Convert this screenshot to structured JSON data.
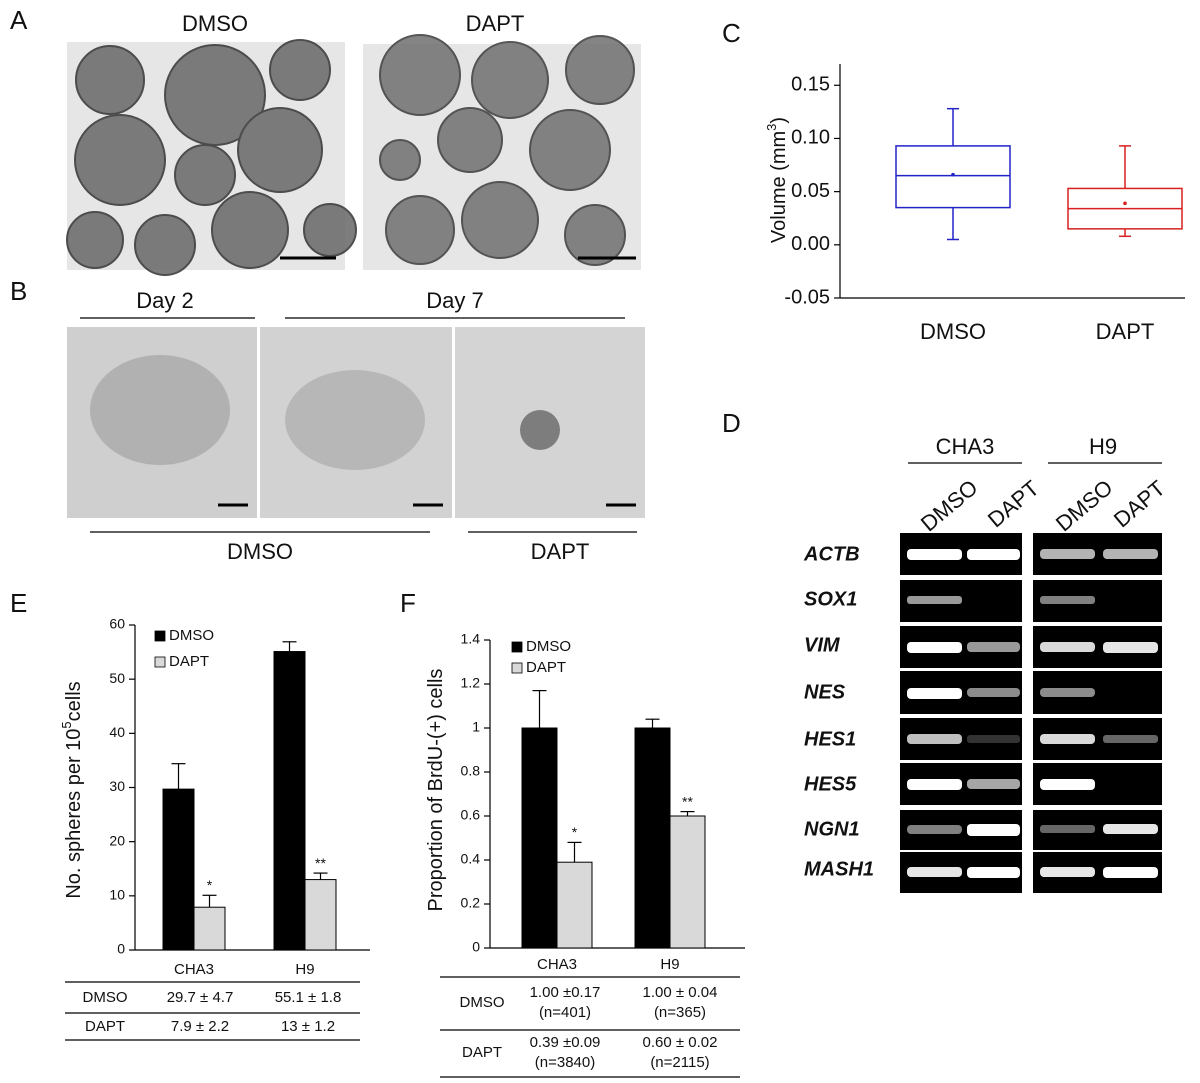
{
  "panel_labels": [
    "A",
    "B",
    "C",
    "D",
    "E",
    "F"
  ],
  "panel_a": {
    "titles": [
      "DMSO",
      "DAPT"
    ]
  },
  "panel_b": {
    "day_labels": [
      "Day 2",
      "Day 7"
    ],
    "group_labels": [
      "DMSO",
      "DAPT"
    ]
  },
  "panel_d": {
    "cell_lines": [
      "CHA3",
      "H9"
    ],
    "lanes": [
      "DMSO",
      "DAPT",
      "DMSO",
      "DAPT"
    ],
    "genes": [
      "ACTB",
      "SOX1",
      "VIM",
      "NES",
      "HES1",
      "HES5",
      "NGN1",
      "MASH1"
    ]
  },
  "chart_data": [
    {
      "type": "box",
      "categories": [
        "DMSO",
        "DAPT"
      ],
      "colors": [
        "#2323c8",
        "#d82020"
      ],
      "y_label": {
        "text": "Volume (mm",
        "sup": "3",
        "end": ")"
      },
      "stats": [
        {
          "whislo": 0.005,
          "q1": 0.035,
          "med": 0.065,
          "mean": 0.066,
          "q3": 0.093,
          "whishi": 0.128
        },
        {
          "whislo": 0.008,
          "q1": 0.015,
          "med": 0.034,
          "mean": 0.039,
          "q3": 0.053,
          "whishi": 0.093
        }
      ],
      "ylim": [
        -0.05,
        0.17
      ],
      "yticks": [
        {
          "value": -0.05,
          "label": "-0.05"
        },
        {
          "value": 0,
          "label": "0.00"
        },
        {
          "value": 0.05,
          "label": "0.05"
        },
        {
          "value": 0.1,
          "label": "0.10"
        },
        {
          "value": 0.15,
          "label": "0.15"
        }
      ]
    },
    {
      "type": "bar",
      "categories": [
        "CHA3",
        "H9"
      ],
      "y_label": {
        "text": "No. spheres per 10",
        "sup": "5",
        "end": "cells"
      },
      "series": [
        {
          "name": "DMSO",
          "color": "#000000",
          "values": [
            29.7,
            55.1
          ],
          "errors": [
            4.7,
            1.8
          ]
        },
        {
          "name": "DAPT",
          "color": "#d9d9d9",
          "values": [
            7.9,
            13
          ],
          "errors": [
            2.2,
            1.2
          ],
          "annotations": [
            "*",
            "**"
          ]
        }
      ],
      "ylim": [
        0,
        60
      ],
      "yticks": [
        0,
        10,
        20,
        30,
        40,
        50,
        60
      ],
      "table": [
        [
          "DMSO",
          "29.7 ± 4.7",
          "55.1 ± 1.8"
        ],
        [
          "DAPT",
          "7.9 ± 2.2",
          "13 ± 1.2"
        ]
      ]
    },
    {
      "type": "bar",
      "categories": [
        "CHA3",
        "H9"
      ],
      "y_label": {
        "text": "Proportion of  BrdU-(+) cells"
      },
      "series": [
        {
          "name": "DMSO",
          "color": "#000000",
          "values": [
            1.0,
            1.0
          ],
          "errors": [
            0.17,
            0.04
          ]
        },
        {
          "name": "DAPT",
          "color": "#d9d9d9",
          "values": [
            0.39,
            0.6
          ],
          "errors": [
            0.09,
            0.02
          ],
          "annotations": [
            "*",
            "**"
          ]
        }
      ],
      "ylim": [
        0,
        1.4
      ],
      "yticks": [
        0,
        0.2,
        0.4,
        0.6,
        0.8,
        1,
        1.2,
        1.4
      ],
      "table": [
        [
          "DMSO",
          [
            "1.00 ±0.17",
            "(n=401)"
          ],
          [
            "1.00 ± 0.04",
            "(n=365)"
          ]
        ],
        [
          "DAPT",
          [
            "0.39 ±0.09",
            "(n=3840)"
          ],
          [
            "0.60 ± 0.02",
            "(n=2115)"
          ]
        ]
      ]
    }
  ]
}
